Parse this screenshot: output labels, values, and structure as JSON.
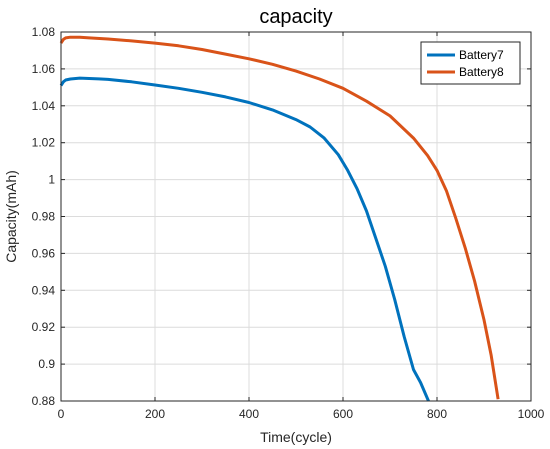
{
  "chart_data": {
    "type": "line",
    "title": "capacity",
    "xlabel": "Time(cycle)",
    "ylabel": "Capacity(mAh)",
    "xlim": [
      0,
      1000
    ],
    "ylim": [
      0.88,
      1.08
    ],
    "xticks": [
      0,
      200,
      400,
      600,
      800,
      1000
    ],
    "yticks": [
      0.88,
      0.9,
      0.92,
      0.94,
      0.96,
      0.98,
      1,
      1.02,
      1.04,
      1.06,
      1.08
    ],
    "xtick_labels": [
      "0",
      "200",
      "400",
      "600",
      "800",
      "1000"
    ],
    "ytick_labels": [
      "0.88",
      "0.9",
      "0.92",
      "0.94",
      "0.96",
      "0.98",
      "1",
      "1.02",
      "1.04",
      "1.06",
      "1.08"
    ],
    "grid": true,
    "legend_position": "top-right",
    "series": [
      {
        "name": "Battery7",
        "color": "#0072BD",
        "x": [
          0,
          5,
          10,
          20,
          40,
          60,
          80,
          100,
          150,
          200,
          250,
          300,
          350,
          400,
          450,
          500,
          530,
          560,
          590,
          610,
          630,
          650,
          670,
          690,
          710,
          730,
          750,
          765,
          782
        ],
        "y": [
          1.051,
          1.053,
          1.054,
          1.0545,
          1.055,
          1.0548,
          1.0546,
          1.0543,
          1.053,
          1.0513,
          1.0495,
          1.0473,
          1.0448,
          1.0418,
          1.0378,
          1.0325,
          1.0285,
          1.0225,
          1.0135,
          1.005,
          0.995,
          0.983,
          0.968,
          0.953,
          0.935,
          0.915,
          0.897,
          0.89,
          0.88
        ]
      },
      {
        "name": "Battery8",
        "color": "#D95319",
        "x": [
          0,
          5,
          10,
          20,
          40,
          60,
          100,
          150,
          200,
          250,
          300,
          350,
          400,
          450,
          500,
          550,
          600,
          650,
          700,
          750,
          780,
          800,
          820,
          840,
          860,
          880,
          900,
          915,
          930
        ],
        "y": [
          1.074,
          1.076,
          1.0768,
          1.0772,
          1.0772,
          1.0768,
          1.0762,
          1.0752,
          1.074,
          1.0725,
          1.0705,
          1.068,
          1.0655,
          1.0625,
          1.0588,
          1.0545,
          1.0495,
          1.0425,
          1.0345,
          1.0225,
          1.013,
          1.005,
          0.994,
          0.979,
          0.963,
          0.945,
          0.924,
          0.905,
          0.881
        ]
      }
    ]
  }
}
